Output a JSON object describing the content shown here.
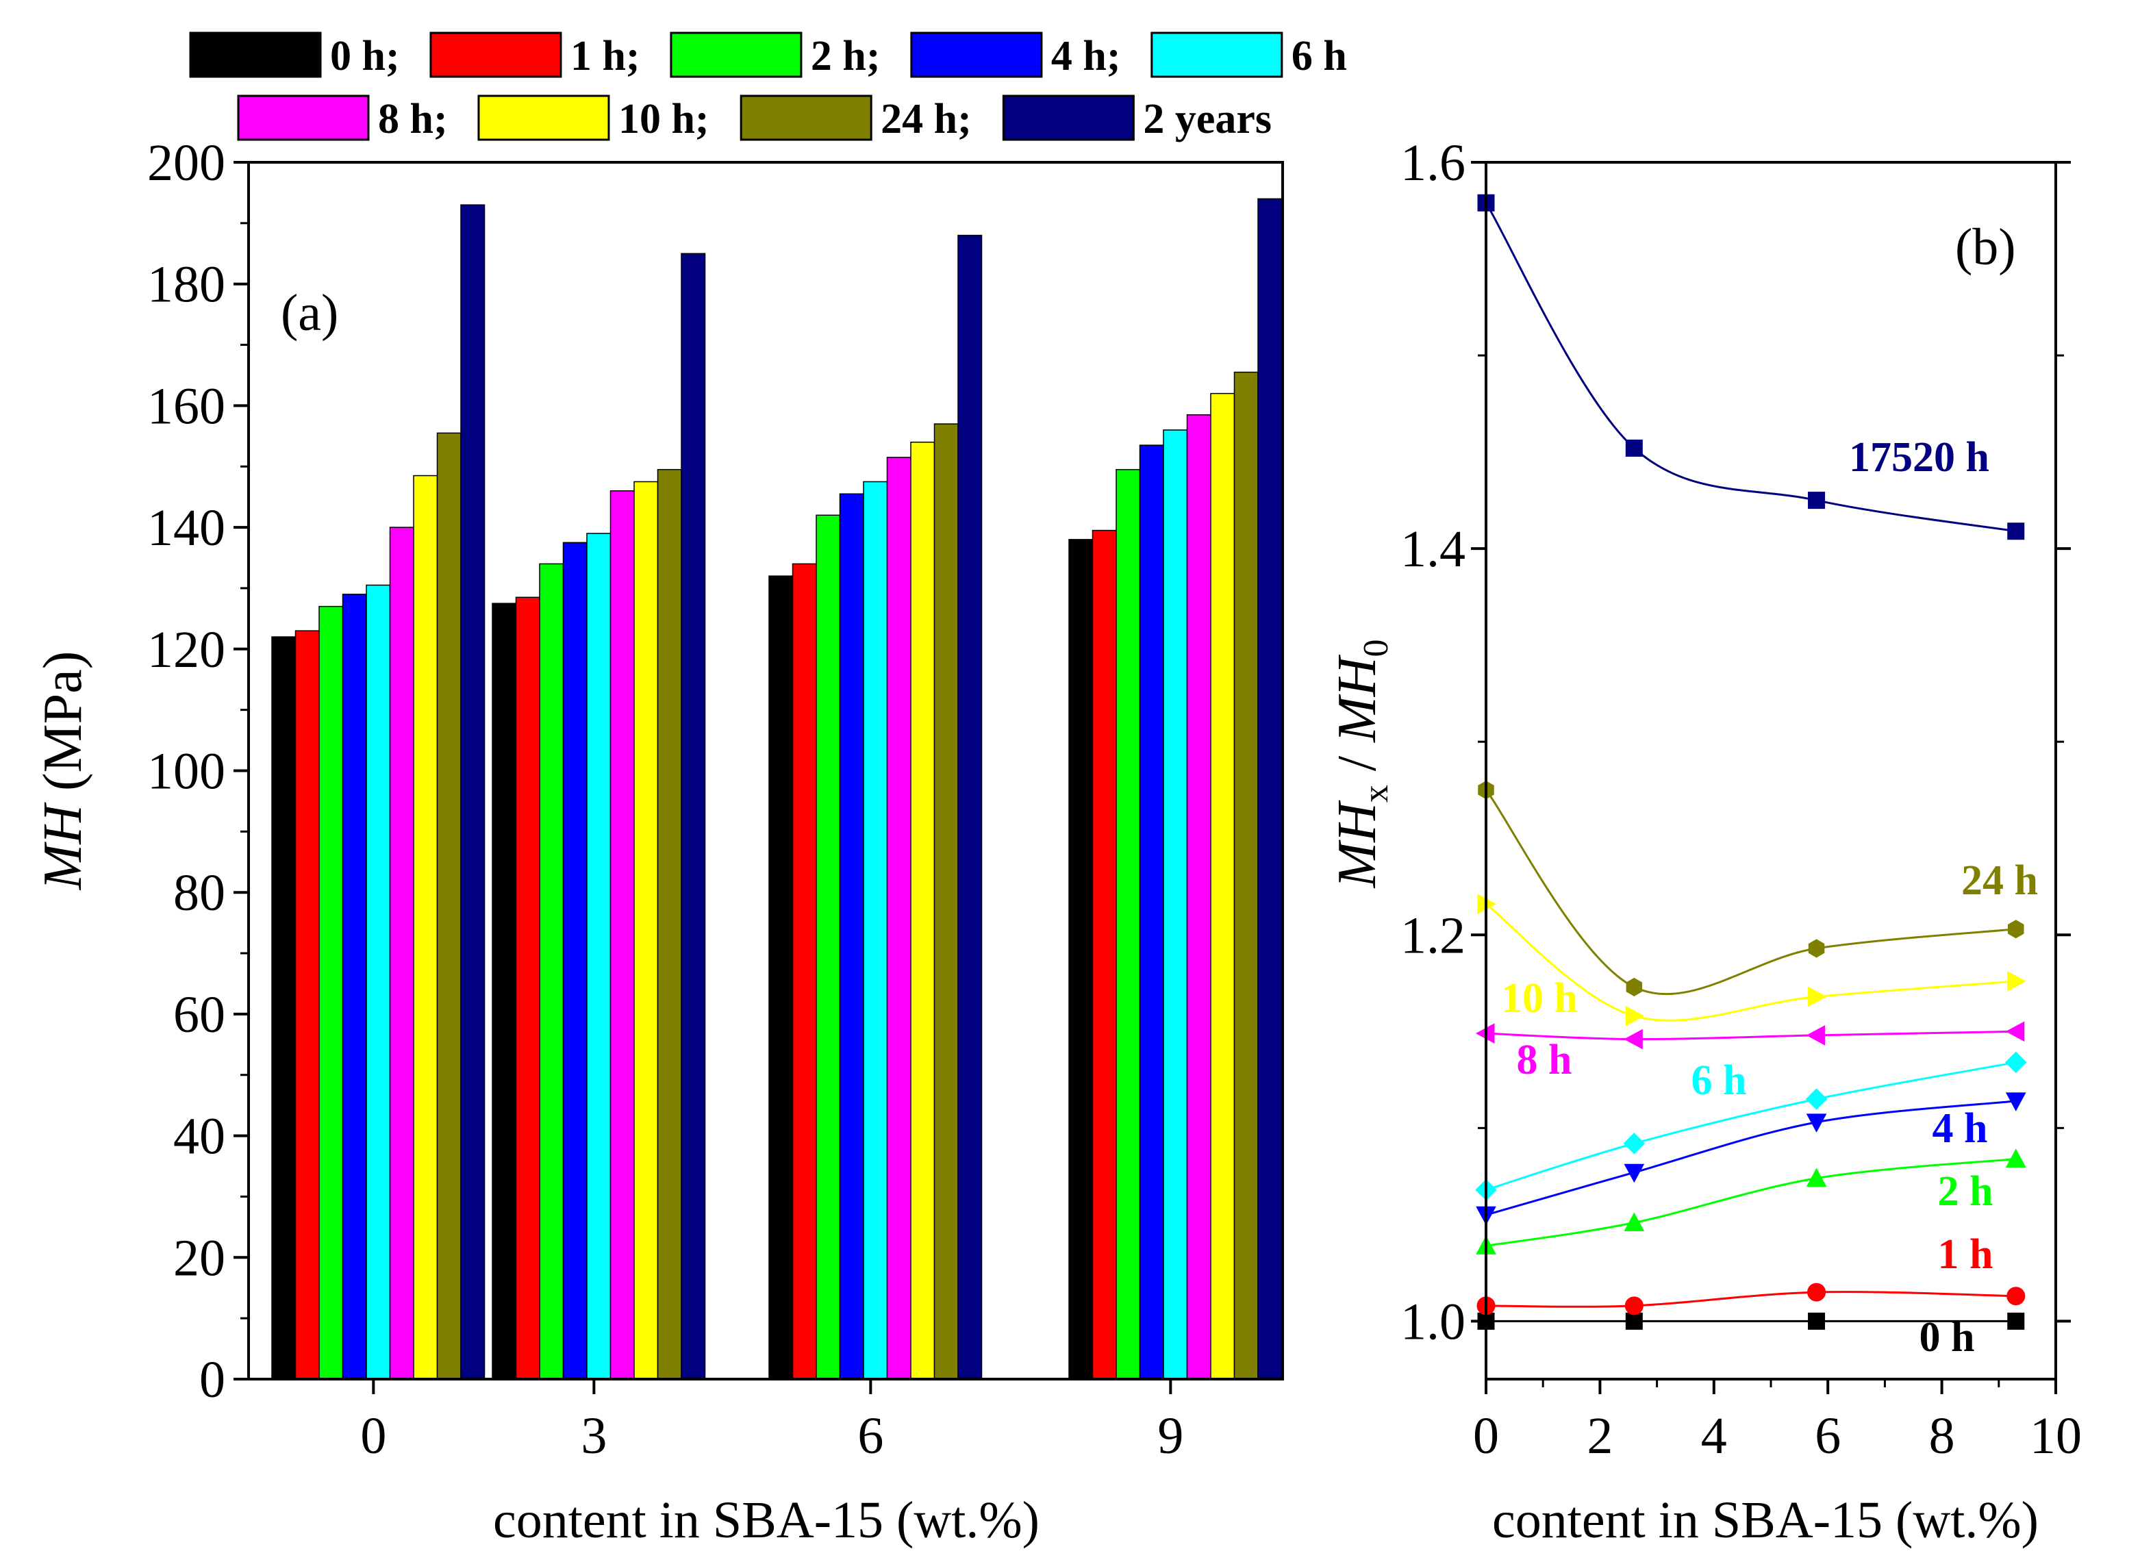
{
  "legend": {
    "rows": [
      [
        {
          "label": "0 h;",
          "color": "#000000"
        },
        {
          "label": "1 h;",
          "color": "#ff0000"
        },
        {
          "label": "2 h;",
          "color": "#00ff00"
        },
        {
          "label": "4 h;",
          "color": "#0000ff"
        },
        {
          "label": "6 h",
          "color": "#00ffff"
        }
      ],
      [
        {
          "label": "8 h;",
          "color": "#ff00ff"
        },
        {
          "label": "10 h;",
          "color": "#ffff00"
        },
        {
          "label": "24 h;",
          "color": "#808000"
        },
        {
          "label": "2 years",
          "color": "#000080"
        }
      ]
    ]
  },
  "chart_data": [
    {
      "type": "bar",
      "panel_label": "(a)",
      "xlabel": "content in SBA-15 (wt.%)",
      "ylabel_italic": "MH",
      "ylabel_rest": " (MPa)",
      "categories": [
        "0",
        "3",
        "6",
        "9"
      ],
      "ylim": [
        0,
        200
      ],
      "yticks": [
        0,
        20,
        40,
        60,
        80,
        100,
        120,
        140,
        160,
        180,
        200
      ],
      "series": [
        {
          "name": "0 h",
          "color": "#000000",
          "values": [
            122,
            127.5,
            132,
            138
          ]
        },
        {
          "name": "1 h",
          "color": "#ff0000",
          "values": [
            123,
            128.5,
            134,
            139.5
          ]
        },
        {
          "name": "2 h",
          "color": "#00ff00",
          "values": [
            127,
            134,
            142,
            149.5
          ]
        },
        {
          "name": "4 h",
          "color": "#0000ff",
          "values": [
            129,
            137.5,
            145.5,
            153.5
          ]
        },
        {
          "name": "6 h",
          "color": "#00ffff",
          "values": [
            130.5,
            139,
            147.5,
            156
          ]
        },
        {
          "name": "8 h",
          "color": "#ff00ff",
          "values": [
            140,
            146,
            151.5,
            158.5
          ]
        },
        {
          "name": "10 h",
          "color": "#ffff00",
          "values": [
            148.5,
            147.5,
            154,
            162
          ]
        },
        {
          "name": "24 h",
          "color": "#808000",
          "values": [
            155.5,
            149.5,
            157,
            165.5
          ]
        },
        {
          "name": "2 years",
          "color": "#000080",
          "values": [
            193,
            185,
            188,
            194
          ]
        }
      ]
    },
    {
      "type": "line",
      "panel_label": "(b)",
      "xlabel": "content in SBA-15 (wt.%)",
      "ylabel_a": "MH",
      "ylabel_a_sub": "x",
      "ylabel_sep": " / ",
      "ylabel_b": "MH",
      "ylabel_b_sub": "0",
      "xlim": [
        0,
        10
      ],
      "ylim": [
        0.97,
        1.6
      ],
      "xticks": [
        0,
        2,
        4,
        6,
        8,
        10
      ],
      "yticks": [
        1.0,
        1.2,
        1.4,
        1.6
      ],
      "x": [
        0,
        2.6,
        5.8,
        9.3
      ],
      "series": [
        {
          "name": "0 h",
          "label": "0 h",
          "color": "#000000",
          "marker": "square",
          "values": [
            1.0,
            1.0,
            1.0,
            1.0
          ]
        },
        {
          "name": "1 h",
          "label": "1 h",
          "color": "#ff0000",
          "marker": "circle",
          "values": [
            1.008,
            1.008,
            1.015,
            1.013
          ]
        },
        {
          "name": "2 h",
          "label": "2 h",
          "color": "#00ff00",
          "marker": "triangle-up",
          "values": [
            1.039,
            1.051,
            1.074,
            1.084
          ]
        },
        {
          "name": "4 h",
          "label": "4 h",
          "color": "#0000ff",
          "marker": "triangle-down",
          "values": [
            1.055,
            1.077,
            1.103,
            1.114
          ]
        },
        {
          "name": "6 h",
          "label": "6 h",
          "color": "#00ffff",
          "marker": "diamond",
          "values": [
            1.068,
            1.092,
            1.115,
            1.134
          ]
        },
        {
          "name": "8 h",
          "label": "8 h",
          "color": "#ff00ff",
          "marker": "triangle-left",
          "values": [
            1.149,
            1.146,
            1.148,
            1.15
          ]
        },
        {
          "name": "10 h",
          "label": "10 h",
          "color": "#ffff00",
          "marker": "triangle-right",
          "values": [
            1.216,
            1.158,
            1.168,
            1.176
          ]
        },
        {
          "name": "24 h",
          "label": "24 h",
          "color": "#808000",
          "marker": "hexagon",
          "values": [
            1.275,
            1.173,
            1.193,
            1.203
          ]
        },
        {
          "name": "17520 h",
          "label": "17520 h",
          "color": "#000080",
          "marker": "square",
          "values": [
            1.579,
            1.452,
            1.425,
            1.409
          ]
        }
      ]
    }
  ]
}
